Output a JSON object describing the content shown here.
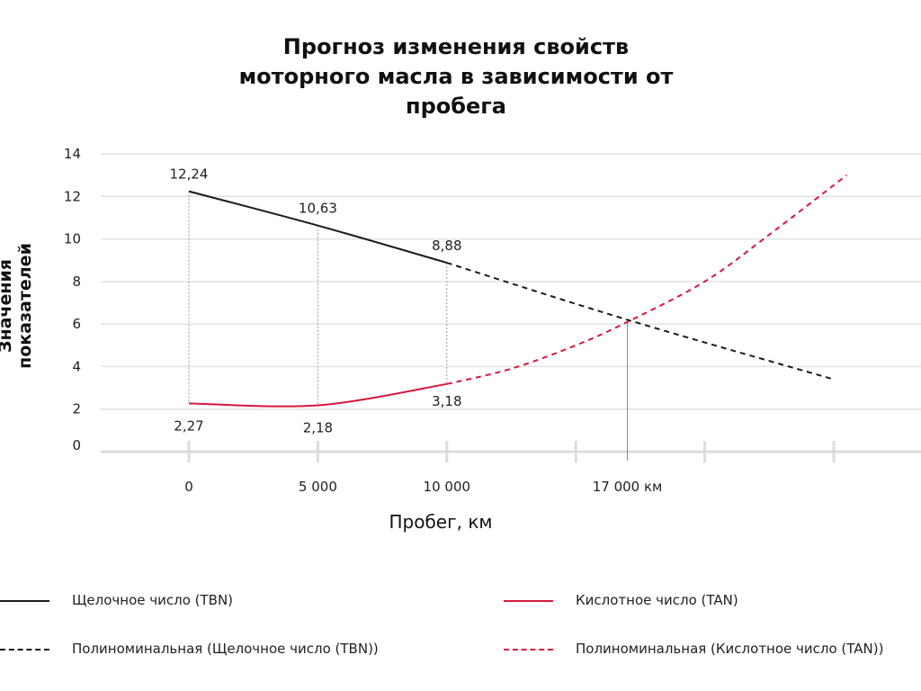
{
  "chart_data": {
    "type": "line",
    "title": "Прогноз изменения свойств моторного масла в зависимости от пробега",
    "xlabel": "Пробег, км",
    "ylabel": "Значения показателей",
    "xlim": [
      -3400,
      28000
    ],
    "ylim": [
      0,
      14
    ],
    "y_ticks": [
      "0",
      "2",
      "4",
      "6",
      "8",
      "10",
      "12",
      "14"
    ],
    "x_ticks": [
      {
        "x": 0,
        "label": "0"
      },
      {
        "x": 5000,
        "label": "5 000"
      },
      {
        "x": 10000,
        "label": "10 000"
      },
      {
        "x": 15000,
        "label": ""
      },
      {
        "x": 17000,
        "label": "17 000 км"
      },
      {
        "x": 20000,
        "label": ""
      },
      {
        "x": 25000,
        "label": ""
      }
    ],
    "grid": true,
    "legend_placement": "bottom",
    "series": [
      {
        "name": "Щелочное число (TBN)",
        "color": "#1a1a1a",
        "style": "solid",
        "x": [
          0,
          5000,
          10000
        ],
        "y": [
          12.24,
          10.63,
          8.88
        ],
        "labels": [
          "12,24",
          "10,63",
          "8,88"
        ]
      },
      {
        "name": "Кислотное число (TAN)",
        "color": "#d8173f",
        "style": "solid",
        "x": [
          0,
          5000,
          10000
        ],
        "y": [
          2.27,
          2.18,
          3.18
        ],
        "labels": [
          "2,27",
          "2,18",
          "3,18"
        ]
      },
      {
        "name": "Полиноминальная (Щелочное число (TBN))",
        "color": "#1a1a1a",
        "style": "dashed",
        "x": [
          10000,
          17000,
          25000
        ],
        "y": [
          8.88,
          6.2,
          3.4
        ]
      },
      {
        "name": "Полиноминальная (Кислотное число (TAN))",
        "color": "#d8173f",
        "style": "dashed",
        "x": [
          10000,
          12500,
          15000,
          17000,
          20000,
          22500,
          25500
        ],
        "y": [
          3.18,
          3.9,
          5.0,
          6.1,
          8.0,
          10.2,
          13.0
        ]
      }
    ],
    "crossing_x": 17000
  }
}
